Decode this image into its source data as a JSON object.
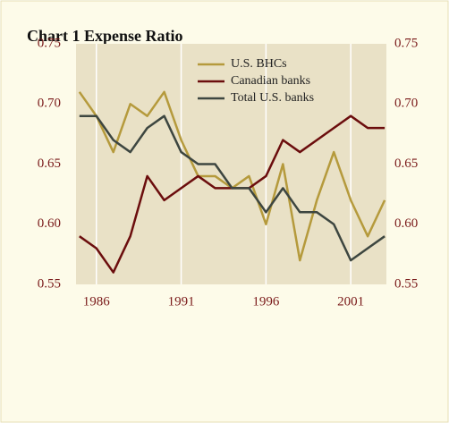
{
  "chart_data": {
    "type": "line",
    "title": "Chart 1    Expense Ratio",
    "x": [
      1985,
      1986,
      1987,
      1988,
      1989,
      1990,
      1991,
      1992,
      1993,
      1994,
      1995,
      1996,
      1997,
      1998,
      1999,
      2000,
      2001,
      2002,
      2003
    ],
    "series": [
      {
        "name": "U.S. BHCs",
        "color": "#b59a3c",
        "values": [
          0.71,
          0.69,
          0.66,
          0.7,
          0.69,
          0.71,
          0.67,
          0.64,
          0.64,
          0.63,
          0.64,
          0.6,
          0.65,
          0.57,
          0.62,
          0.66,
          0.62,
          0.59,
          0.62
        ]
      },
      {
        "name": "Canadian banks",
        "color": "#6b0d0d",
        "values": [
          0.59,
          0.58,
          0.56,
          0.59,
          0.64,
          0.62,
          0.63,
          0.64,
          0.63,
          0.63,
          0.63,
          0.64,
          0.67,
          0.66,
          0.67,
          0.68,
          0.69,
          0.68,
          0.68
        ]
      },
      {
        "name": "Total U.S. banks",
        "color": "#3d4640",
        "values": [
          0.69,
          0.69,
          0.67,
          0.66,
          0.68,
          0.69,
          0.66,
          0.65,
          0.65,
          0.63,
          0.63,
          0.61,
          0.63,
          0.61,
          0.61,
          0.6,
          0.57,
          0.58,
          0.59
        ]
      }
    ],
    "xlim": [
      1984.8,
      2003.1
    ],
    "xticks": [
      1986,
      1991,
      1996,
      2001
    ],
    "ylim": [
      0.55,
      0.75
    ],
    "yticks": [
      0.55,
      {
        "value": 0.6,
        "label": "0.60"
      },
      0.65,
      {
        "value": 0.7,
        "label": "0.70"
      },
      0.75
    ],
    "y2lim": [
      0.55,
      0.75
    ],
    "y2ticks": [
      0.55,
      {
        "value": 0.6,
        "label": "0.60"
      },
      0.65,
      {
        "value": 0.7,
        "label": "0.70"
      },
      0.75
    ],
    "grid": true,
    "legend": "top"
  }
}
